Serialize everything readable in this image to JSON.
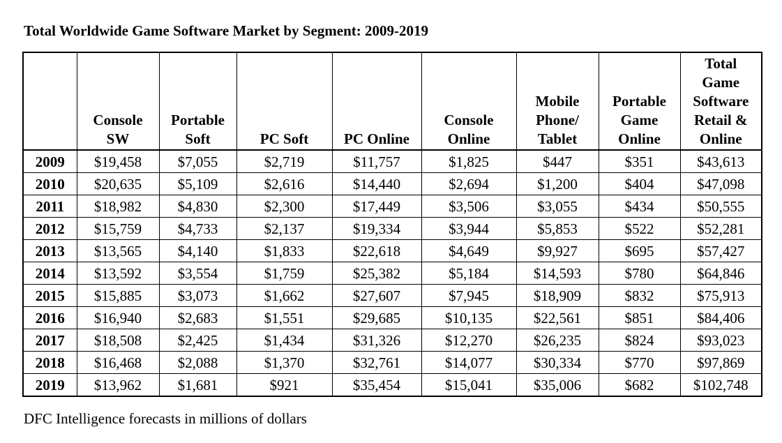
{
  "title": "Total Worldwide Game Software Market by Segment: 2009-2019",
  "footnote": "DFC Intelligence forecasts in millions of dollars",
  "columns": [
    {
      "lines": [
        ""
      ]
    },
    {
      "lines": [
        "Console",
        "SW"
      ]
    },
    {
      "lines": [
        "Portable",
        "Soft"
      ]
    },
    {
      "lines": [
        "PC Soft"
      ]
    },
    {
      "lines": [
        "PC Online"
      ]
    },
    {
      "lines": [
        "Console",
        "Online"
      ]
    },
    {
      "lines": [
        "Mobile",
        "Phone/",
        "Tablet"
      ]
    },
    {
      "lines": [
        "Portable",
        "Game",
        "Online"
      ]
    },
    {
      "lines": [
        "Total",
        "Game",
        "Software",
        "Retail &",
        "Online"
      ]
    }
  ],
  "rows": [
    [
      "2009",
      "$19,458",
      "$7,055",
      "$2,719",
      "$11,757",
      "$1,825",
      "$447",
      "$351",
      "$43,613"
    ],
    [
      "2010",
      "$20,635",
      "$5,109",
      "$2,616",
      "$14,440",
      "$2,694",
      "$1,200",
      "$404",
      "$47,098"
    ],
    [
      "2011",
      "$18,982",
      "$4,830",
      "$2,300",
      "$17,449",
      "$3,506",
      "$3,055",
      "$434",
      "$50,555"
    ],
    [
      "2012",
      "$15,759",
      "$4,733",
      "$2,137",
      "$19,334",
      "$3,944",
      "$5,853",
      "$522",
      "$52,281"
    ],
    [
      "2013",
      "$13,565",
      "$4,140",
      "$1,833",
      "$22,618",
      "$4,649",
      "$9,927",
      "$695",
      "$57,427"
    ],
    [
      "2014",
      "$13,592",
      "$3,554",
      "$1,759",
      "$25,382",
      "$5,184",
      "$14,593",
      "$780",
      "$64,846"
    ],
    [
      "2015",
      "$15,885",
      "$3,073",
      "$1,662",
      "$27,607",
      "$7,945",
      "$18,909",
      "$832",
      "$75,913"
    ],
    [
      "2016",
      "$16,940",
      "$2,683",
      "$1,551",
      "$29,685",
      "$10,135",
      "$22,561",
      "$851",
      "$84,406"
    ],
    [
      "2017",
      "$18,508",
      "$2,425",
      "$1,434",
      "$31,326",
      "$12,270",
      "$26,235",
      "$824",
      "$93,023"
    ],
    [
      "2018",
      "$16,468",
      "$2,088",
      "$1,370",
      "$32,761",
      "$14,077",
      "$30,334",
      "$770",
      "$97,869"
    ],
    [
      "2019",
      "$13,962",
      "$1,681",
      "$921",
      "$35,454",
      "$15,041",
      "$35,006",
      "$682",
      "$102,748"
    ]
  ]
}
